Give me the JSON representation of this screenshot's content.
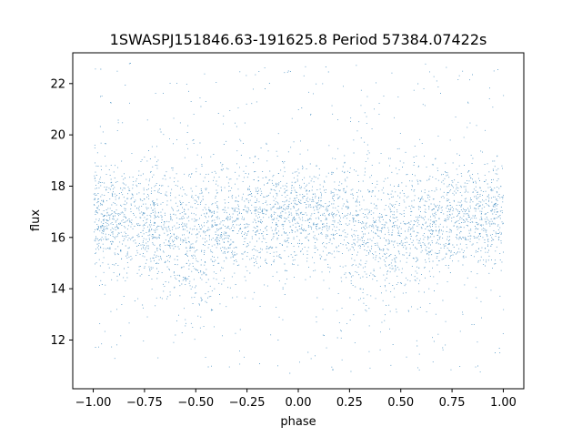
{
  "chart_data": {
    "type": "scatter",
    "title": "1SWASPJ151846.63-191625.8 Period 57384.07422s",
    "xlabel": "phase",
    "ylabel": "flux",
    "xlim": [
      -1.1,
      1.1
    ],
    "ylim": [
      10.1,
      23.2
    ],
    "xticks": [
      -1.0,
      -0.75,
      -0.5,
      -0.25,
      0.0,
      0.25,
      0.5,
      0.75,
      1.0
    ],
    "xtick_labels": [
      "−1.00",
      "−0.75",
      "−0.50",
      "−0.25",
      "0.00",
      "0.25",
      "0.50",
      "0.75",
      "1.00"
    ],
    "yticks": [
      12,
      14,
      16,
      18,
      20,
      22
    ],
    "ytick_labels": [
      "12",
      "14",
      "16",
      "18",
      "20",
      "22"
    ],
    "grid": false,
    "legend": false,
    "marker_color": "#1f77b4",
    "series": [
      {
        "phase_range": [
          -1.0,
          1.0
        ],
        "flux_range": [
          10.7,
          22.8
        ],
        "point_count": 60000,
        "median_flux_by_phase": {
          "x": [
            -1.0,
            -0.75,
            -0.55,
            -0.25,
            0.0,
            0.25,
            0.45,
            0.75,
            1.0
          ],
          "y": [
            16.8,
            16.6,
            16.0,
            16.7,
            16.9,
            16.6,
            16.0,
            16.8,
            16.8
          ]
        }
      }
    ]
  }
}
